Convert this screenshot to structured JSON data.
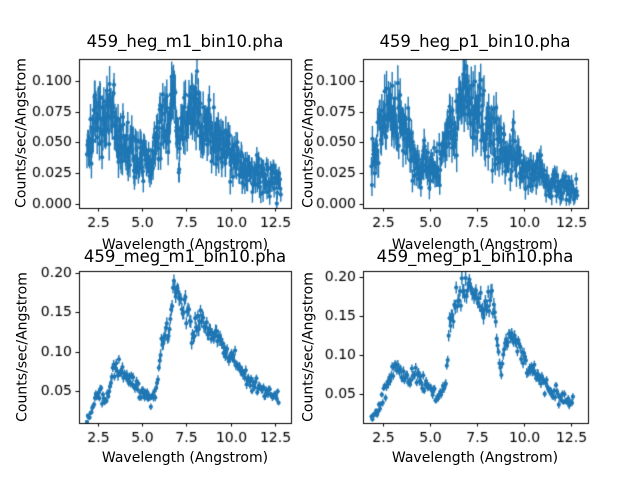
{
  "figure": {
    "background": "#ffffff",
    "text_color": "#000000"
  },
  "chart_data": [
    {
      "type": "scatter",
      "title": "459_heg_m1_bin10.pha",
      "xlabel": "Wavelength (Angstrom)",
      "ylabel": "Counts/sec/Angstrom",
      "marker_color": "#1f77b4",
      "xlim": [
        1.45,
        13.4
      ],
      "ylim": [
        -0.003,
        0.1175
      ],
      "xticks": {
        "values": [
          2.5,
          5.0,
          7.5,
          10.0,
          12.5
        ],
        "labels": [
          "2.5",
          "5.0",
          "7.5",
          "10.0",
          "12.5"
        ]
      },
      "yticks": {
        "values": [
          0.0,
          0.025,
          0.05,
          0.075,
          0.1
        ],
        "labels": [
          "0.000",
          "0.025",
          "0.050",
          "0.075",
          "0.100"
        ]
      },
      "x_start": 1.9,
      "x_step": 0.025,
      "n_points": 438,
      "noise_scale": 0.048,
      "err_scale": 0.046,
      "seed": 7,
      "envelope_x": [
        1.9,
        2.1,
        2.3,
        2.5,
        2.7,
        2.9,
        3.1,
        3.3,
        3.5,
        3.8,
        4.1,
        4.4,
        4.7,
        5.0,
        5.3,
        5.6,
        5.9,
        6.2,
        6.5,
        6.7,
        6.8,
        6.9,
        7.0,
        7.1,
        7.2,
        7.4,
        7.6,
        7.9,
        8.1,
        8.4,
        8.7,
        9.0,
        9.3,
        9.6,
        9.9,
        10.2,
        10.5,
        10.8,
        11.1,
        11.4,
        11.7,
        12.0,
        12.3,
        12.85
      ],
      "envelope_y": [
        0.05,
        0.052,
        0.062,
        0.068,
        0.066,
        0.068,
        0.07,
        0.072,
        0.063,
        0.052,
        0.047,
        0.044,
        0.04,
        0.035,
        0.031,
        0.038,
        0.052,
        0.063,
        0.068,
        0.08,
        0.098,
        0.08,
        0.06,
        0.038,
        0.055,
        0.068,
        0.072,
        0.078,
        0.073,
        0.065,
        0.061,
        0.06,
        0.054,
        0.049,
        0.044,
        0.04,
        0.035,
        0.029,
        0.025,
        0.023,
        0.027,
        0.022,
        0.021,
        0.016
      ]
    },
    {
      "type": "scatter",
      "title": "459_heg_p1_bin10.pha",
      "xlabel": "Wavelength (Angstrom)",
      "ylabel": "Counts/sec/Angstrom",
      "marker_color": "#1f77b4",
      "xlim": [
        1.45,
        13.4
      ],
      "ylim": [
        -0.003,
        0.1175
      ],
      "xticks": {
        "values": [
          2.5,
          5.0,
          7.5,
          10.0,
          12.5
        ],
        "labels": [
          "2.5",
          "5.0",
          "7.5",
          "10.0",
          "12.5"
        ]
      },
      "yticks": {
        "values": [
          0.0,
          0.025,
          0.05,
          0.075,
          0.1
        ],
        "labels": [
          "0.000",
          "0.025",
          "0.050",
          "0.075",
          "0.100"
        ]
      },
      "x_start": 1.9,
      "x_step": 0.025,
      "n_points": 438,
      "noise_scale": 0.046,
      "err_scale": 0.046,
      "seed": 13,
      "envelope_x": [
        1.9,
        2.1,
        2.3,
        2.5,
        2.7,
        2.9,
        3.1,
        3.3,
        3.5,
        3.7,
        3.9,
        4.1,
        4.3,
        4.5,
        4.7,
        4.9,
        5.1,
        5.3,
        5.5,
        5.7,
        5.9,
        6.1,
        6.3,
        6.5,
        6.7,
        6.8,
        6.9,
        7.1,
        7.3,
        7.5,
        7.7,
        7.9,
        8.1,
        8.3,
        8.5,
        8.7,
        8.9,
        9.1,
        9.3,
        9.5,
        9.7,
        9.9,
        10.1,
        10.3,
        10.5,
        10.7,
        10.9,
        11.1,
        11.3,
        11.5,
        11.8,
        12.1,
        12.4,
        12.85
      ],
      "envelope_y": [
        0.04,
        0.048,
        0.055,
        0.065,
        0.07,
        0.072,
        0.073,
        0.07,
        0.065,
        0.06,
        0.052,
        0.042,
        0.03,
        0.028,
        0.038,
        0.032,
        0.03,
        0.03,
        0.032,
        0.04,
        0.052,
        0.06,
        0.058,
        0.068,
        0.085,
        0.095,
        0.088,
        0.082,
        0.078,
        0.075,
        0.07,
        0.066,
        0.062,
        0.058,
        0.055,
        0.05,
        0.045,
        0.042,
        0.043,
        0.045,
        0.037,
        0.03,
        0.025,
        0.022,
        0.026,
        0.028,
        0.025,
        0.021,
        0.019,
        0.018,
        0.017,
        0.014,
        0.012,
        0.009
      ]
    },
    {
      "type": "scatter",
      "title": "459_meg_m1_bin10.pha",
      "xlabel": "Wavelength (Angstrom)",
      "ylabel": "Counts/sec/Angstrom",
      "marker_color": "#1f77b4",
      "xlim": [
        1.45,
        13.4
      ],
      "ylim": [
        0.01,
        0.2025
      ],
      "xticks": {
        "values": [
          2.5,
          5.0,
          7.5,
          10.0,
          12.5
        ],
        "labels": [
          "2.5",
          "5.0",
          "7.5",
          "10.0",
          "12.5"
        ]
      },
      "yticks": {
        "values": [
          0.05,
          0.1,
          0.15,
          0.2
        ],
        "labels": [
          "0.05",
          "0.10",
          "0.15",
          "0.20"
        ]
      },
      "x_start": 1.9,
      "x_step": 0.05,
      "n_points": 217,
      "noise_scale": 0.022,
      "err_scale": 0.02,
      "seed": 21,
      "envelope_x": [
        1.9,
        2.1,
        2.3,
        2.5,
        2.6,
        2.8,
        3.0,
        3.2,
        3.4,
        3.6,
        3.8,
        4.0,
        4.2,
        4.5,
        4.8,
        5.1,
        5.4,
        5.6,
        5.8,
        5.95,
        6.05,
        6.2,
        6.4,
        6.55,
        6.65,
        6.75,
        6.85,
        7.0,
        7.2,
        7.4,
        7.6,
        7.8,
        8.0,
        8.2,
        8.4,
        8.6,
        8.8,
        9.0,
        9.2,
        9.4,
        9.6,
        9.8,
        10.0,
        10.2,
        10.5,
        10.8,
        11.1,
        11.4,
        11.7,
        12.0,
        12.3,
        12.7
      ],
      "envelope_y": [
        0.013,
        0.022,
        0.035,
        0.048,
        0.055,
        0.042,
        0.038,
        0.055,
        0.078,
        0.082,
        0.075,
        0.07,
        0.065,
        0.06,
        0.055,
        0.048,
        0.04,
        0.045,
        0.055,
        0.075,
        0.11,
        0.122,
        0.128,
        0.12,
        0.15,
        0.175,
        0.18,
        0.17,
        0.165,
        0.158,
        0.148,
        0.125,
        0.13,
        0.148,
        0.145,
        0.132,
        0.122,
        0.12,
        0.124,
        0.112,
        0.105,
        0.1,
        0.096,
        0.088,
        0.08,
        0.07,
        0.062,
        0.056,
        0.052,
        0.049,
        0.046,
        0.043
      ]
    },
    {
      "type": "scatter",
      "title": "459_meg_p1_bin10.pha",
      "xlabel": "Wavelength (Angstrom)",
      "ylabel": "Counts/sec/Angstrom",
      "marker_color": "#1f77b4",
      "xlim": [
        1.45,
        13.4
      ],
      "ylim": [
        0.012,
        0.208
      ],
      "xticks": {
        "values": [
          2.5,
          5.0,
          7.5,
          10.0,
          12.5
        ],
        "labels": [
          "2.5",
          "5.0",
          "7.5",
          "10.0",
          "12.5"
        ]
      },
      "yticks": {
        "values": [
          0.05,
          0.1,
          0.15,
          0.2
        ],
        "labels": [
          "0.05",
          "0.10",
          "0.15",
          "0.20"
        ]
      },
      "x_start": 1.9,
      "x_step": 0.05,
      "n_points": 215,
      "noise_scale": 0.022,
      "err_scale": 0.02,
      "seed": 42,
      "envelope_x": [
        1.9,
        2.0,
        2.2,
        2.4,
        2.6,
        2.8,
        3.0,
        3.2,
        3.4,
        3.6,
        3.8,
        4.0,
        4.2,
        4.4,
        4.6,
        4.9,
        5.1,
        5.3,
        5.5,
        5.7,
        5.85,
        5.95,
        6.05,
        6.2,
        6.4,
        6.6,
        6.8,
        7.0,
        7.2,
        7.4,
        7.6,
        7.8,
        8.0,
        8.2,
        8.35,
        8.5,
        8.6,
        8.7,
        8.8,
        8.9,
        9.0,
        9.1,
        9.2,
        9.35,
        9.5,
        9.7,
        9.9,
        10.1,
        10.3,
        10.6,
        10.9,
        11.2,
        11.5,
        11.8,
        12.1,
        12.6
      ],
      "envelope_y": [
        0.018,
        0.022,
        0.03,
        0.04,
        0.052,
        0.063,
        0.075,
        0.085,
        0.08,
        0.075,
        0.072,
        0.07,
        0.075,
        0.068,
        0.065,
        0.062,
        0.06,
        0.048,
        0.043,
        0.05,
        0.065,
        0.09,
        0.14,
        0.155,
        0.17,
        0.178,
        0.185,
        0.188,
        0.18,
        0.176,
        0.17,
        0.16,
        0.165,
        0.166,
        0.158,
        0.15,
        0.11,
        0.085,
        0.075,
        0.095,
        0.11,
        0.122,
        0.128,
        0.12,
        0.113,
        0.105,
        0.098,
        0.09,
        0.083,
        0.076,
        0.068,
        0.061,
        0.053,
        0.047,
        0.043,
        0.04
      ]
    }
  ]
}
